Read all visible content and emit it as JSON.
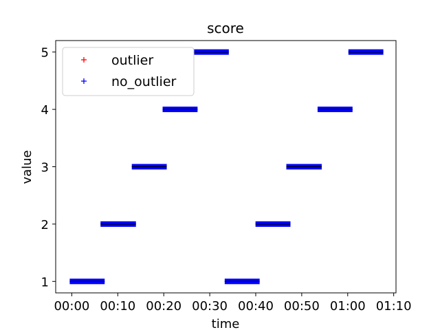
{
  "chart_data": {
    "type": "scatter",
    "title": "score",
    "xlabel": "time",
    "ylabel": "value",
    "x_unit": "minutes",
    "xlim": [
      -3.5,
      70.5
    ],
    "ylim": [
      0.8,
      5.2
    ],
    "x_ticks": [
      0,
      10,
      20,
      30,
      40,
      50,
      60,
      70
    ],
    "x_tick_labels": [
      "00:00",
      "00:10",
      "00:20",
      "00:30",
      "00:40",
      "00:50",
      "01:00",
      "01:10"
    ],
    "y_ticks": [
      1,
      2,
      3,
      4,
      5
    ],
    "y_tick_labels": [
      "1",
      "2",
      "3",
      "4",
      "5"
    ],
    "marker": "+",
    "legend": {
      "placement": "upper-left",
      "entries": [
        "outlier",
        "no_outlier"
      ]
    },
    "series": [
      {
        "name": "outlier",
        "color": "#ff0000",
        "segments": []
      },
      {
        "name": "no_outlier",
        "color": "#0000ff",
        "segments": [
          {
            "x_start": 0,
            "x_end": 6.7,
            "y": 1
          },
          {
            "x_start": 6.7,
            "x_end": 13.5,
            "y": 2
          },
          {
            "x_start": 13.5,
            "x_end": 20.2,
            "y": 3
          },
          {
            "x_start": 20.2,
            "x_end": 26.9,
            "y": 4
          },
          {
            "x_start": 26.9,
            "x_end": 33.7,
            "y": 5
          },
          {
            "x_start": 33.7,
            "x_end": 40.4,
            "y": 1
          },
          {
            "x_start": 40.4,
            "x_end": 47.1,
            "y": 2
          },
          {
            "x_start": 47.1,
            "x_end": 53.9,
            "y": 3
          },
          {
            "x_start": 53.9,
            "x_end": 60.6,
            "y": 4
          },
          {
            "x_start": 60.6,
            "x_end": 67.3,
            "y": 5
          }
        ]
      }
    ]
  }
}
